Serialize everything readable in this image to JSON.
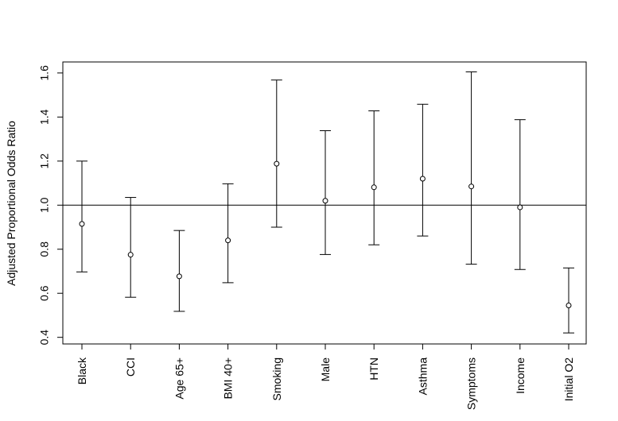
{
  "chart_data": {
    "type": "scatter",
    "subtype": "error-bar",
    "title": "",
    "xlabel": "",
    "ylabel": "Adjusted Proportional Odds Ratio",
    "ylim": [
      0.37,
      1.65
    ],
    "yticks": [
      0.4,
      0.6,
      0.8,
      1.0,
      1.2,
      1.4,
      1.6
    ],
    "ytick_labels": [
      "0.4",
      "0.6",
      "0.8",
      "1.0",
      "1.2",
      "1.4",
      "1.6"
    ],
    "reference_line": 1.0,
    "grid": false,
    "categories": [
      "Black",
      "CCI",
      "Age 65+",
      "BMI 40+",
      "Smoking",
      "Male",
      "HTN",
      "Asthma",
      "Symptoms",
      "Income",
      "Initial O2"
    ],
    "values": [
      0.915,
      0.775,
      0.677,
      0.84,
      1.188,
      1.02,
      1.081,
      1.12,
      1.085,
      0.99,
      0.545
    ],
    "lower": [
      0.697,
      0.582,
      0.518,
      0.648,
      0.9,
      0.776,
      0.82,
      0.86,
      0.732,
      0.708,
      0.42
    ],
    "upper": [
      1.2,
      1.035,
      0.885,
      1.097,
      1.568,
      1.338,
      1.428,
      1.458,
      1.605,
      1.388,
      0.715
    ],
    "colors": {
      "line": "#000000",
      "background": "#ffffff"
    }
  }
}
